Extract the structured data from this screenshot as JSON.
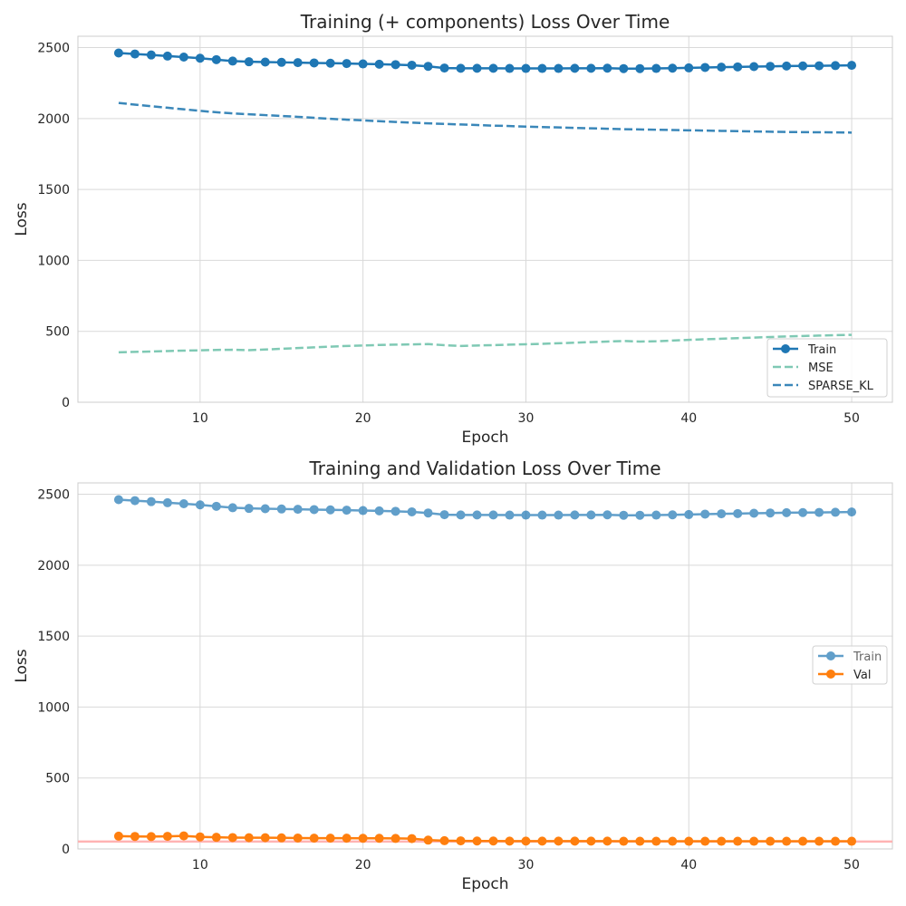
{
  "chart_data": [
    {
      "type": "line",
      "title": "Training (+ components) Loss Over Time",
      "xlabel": "Epoch",
      "ylabel": "Loss",
      "xlim": [
        2.5,
        52.5
      ],
      "ylim": [
        0,
        2580
      ],
      "xticks": [
        10,
        20,
        30,
        40,
        50
      ],
      "yticks": [
        0,
        500,
        1000,
        1500,
        2000,
        2500
      ],
      "grid": true,
      "legend_position": "lower-right",
      "x": [
        5,
        6,
        7,
        8,
        9,
        10,
        11,
        12,
        13,
        14,
        15,
        16,
        17,
        18,
        19,
        20,
        21,
        22,
        23,
        24,
        25,
        26,
        27,
        28,
        29,
        30,
        31,
        32,
        33,
        34,
        35,
        36,
        37,
        38,
        39,
        40,
        41,
        42,
        43,
        44,
        45,
        46,
        47,
        48,
        49,
        50
      ],
      "series": [
        {
          "name": "Train",
          "color": "#1f77b4",
          "style": "solid",
          "markers": true,
          "values": [
            2462,
            2455,
            2448,
            2440,
            2433,
            2425,
            2415,
            2405,
            2400,
            2398,
            2396,
            2394,
            2392,
            2390,
            2388,
            2385,
            2383,
            2380,
            2376,
            2368,
            2356,
            2354,
            2354,
            2354,
            2353,
            2353,
            2353,
            2353,
            2354,
            2354,
            2355,
            2352,
            2352,
            2353,
            2355,
            2357,
            2360,
            2362,
            2364,
            2366,
            2368,
            2370,
            2371,
            2372,
            2373,
            2375
          ]
        },
        {
          "name": "MSE",
          "color": "#7fc9b4",
          "style": "dashed",
          "markers": false,
          "values": [
            352,
            355,
            358,
            361,
            364,
            366,
            369,
            370,
            367,
            372,
            377,
            382,
            387,
            392,
            397,
            400,
            404,
            406,
            408,
            410,
            402,
            397,
            400,
            403,
            406,
            409,
            412,
            416,
            420,
            424,
            428,
            432,
            428,
            430,
            435,
            440,
            444,
            448,
            452,
            456,
            460,
            464,
            467,
            470,
            473,
            475
          ]
        },
        {
          "name": "SPARSE_KL",
          "color": "#3a87b9",
          "style": "dashed",
          "markers": false,
          "values": [
            2110,
            2098,
            2087,
            2076,
            2065,
            2054,
            2044,
            2036,
            2030,
            2024,
            2018,
            2012,
            2005,
            1998,
            1992,
            1987,
            1981,
            1976,
            1971,
            1966,
            1962,
            1958,
            1954,
            1950,
            1947,
            1943,
            1940,
            1937,
            1934,
            1931,
            1928,
            1925,
            1923,
            1921,
            1919,
            1917,
            1915,
            1913,
            1911,
            1909,
            1907,
            1905,
            1904,
            1903,
            1902,
            1901
          ]
        }
      ]
    },
    {
      "type": "line",
      "title": "Training and Validation Loss Over Time",
      "xlabel": "Epoch",
      "ylabel": "Loss",
      "xlim": [
        2.5,
        52.5
      ],
      "ylim": [
        0,
        2580
      ],
      "xticks": [
        10,
        20,
        30,
        40,
        50
      ],
      "yticks": [
        0,
        500,
        1000,
        1500,
        2000,
        2500
      ],
      "grid": true,
      "legend_position": "center-right",
      "reference_line": {
        "y": 52,
        "color": "#ffb3b3"
      },
      "x": [
        5,
        6,
        7,
        8,
        9,
        10,
        11,
        12,
        13,
        14,
        15,
        16,
        17,
        18,
        19,
        20,
        21,
        22,
        23,
        24,
        25,
        26,
        27,
        28,
        29,
        30,
        31,
        32,
        33,
        34,
        35,
        36,
        37,
        38,
        39,
        40,
        41,
        42,
        43,
        44,
        45,
        46,
        47,
        48,
        49,
        50
      ],
      "series": [
        {
          "name": "Train",
          "color": "#1f77b4",
          "style": "solid",
          "markers": true,
          "alpha": 0.7,
          "values": [
            2462,
            2455,
            2448,
            2440,
            2433,
            2425,
            2415,
            2405,
            2400,
            2398,
            2396,
            2394,
            2392,
            2390,
            2388,
            2385,
            2383,
            2380,
            2376,
            2368,
            2356,
            2354,
            2354,
            2354,
            2353,
            2353,
            2353,
            2353,
            2354,
            2354,
            2355,
            2352,
            2352,
            2353,
            2355,
            2357,
            2360,
            2362,
            2364,
            2366,
            2368,
            2370,
            2371,
            2372,
            2373,
            2375
          ]
        },
        {
          "name": "Val",
          "color": "#ff7f0e",
          "style": "solid",
          "markers": true,
          "values": [
            90,
            88,
            87,
            89,
            92,
            85,
            82,
            80,
            79,
            79,
            78,
            77,
            76,
            76,
            76,
            75,
            75,
            74,
            73,
            62,
            58,
            57,
            56,
            56,
            55,
            55,
            55,
            55,
            55,
            55,
            55,
            54,
            54,
            54,
            54,
            54,
            54,
            54,
            54,
            54,
            54,
            54,
            54,
            54,
            54,
            54
          ]
        }
      ]
    }
  ]
}
